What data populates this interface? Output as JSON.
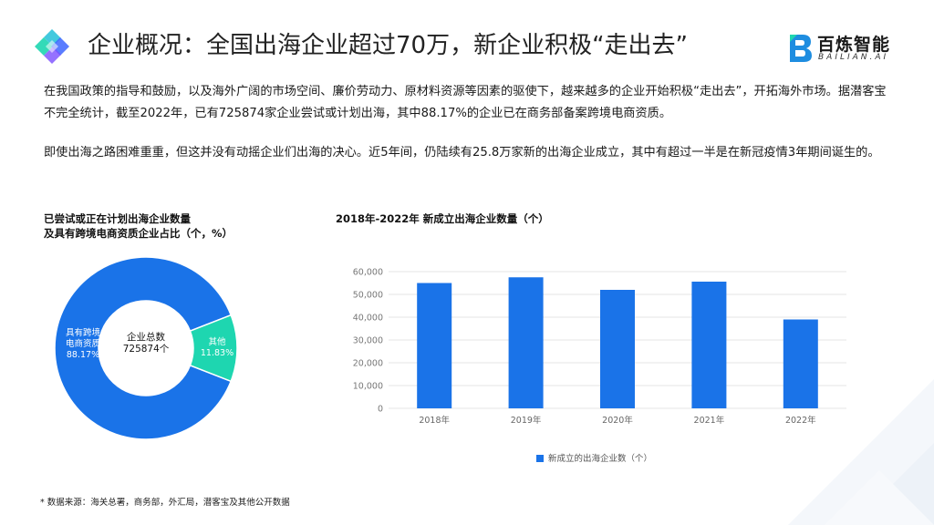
{
  "title": "企业概况：全国出海企业超过70万，新企业积极“走出去”",
  "brand": {
    "name": "百炼智能",
    "sub": "BAILIAN.AI"
  },
  "paragraphs": [
    "在我国政策的指导和鼓励，以及海外广阔的市场空间、廉价劳动力、原材料资源等因素的驱使下，越来越多的企业开始积极“走出去”，开拓海外市场。据潜客宝不完全统计，截至2022年，已有725874家企业尝试或计划出海，其中88.17%的企业已在商务部备案跨境电商资质。",
    "即使出海之路困难重重，但这并没有动摇企业们出海的决心。近5年间，仍陆续有25.8万家新的出海企业成立，其中有超过一半是在新冠疫情3年期间诞生的。"
  ],
  "pie_title_line1": "已尝试或正在计划出海企业数量",
  "pie_title_line2": "及具有跨境电商资质企业占比（个，%）",
  "bar_title": "2018年-2022年 新成立出海企业数量（个）",
  "colors": {
    "blue": "#1a73e8",
    "teal": "#1ed6b0"
  },
  "chart_data": [
    {
      "type": "pie",
      "title": "已尝试或正在计划出海企业数量及具有跨境电商资质企业占比（个，%）",
      "center_label": "企业总数",
      "center_value": "725874个",
      "slices": [
        {
          "label": "具有跨境电商资质",
          "label_line1": "具有跨境",
          "label_line2": "电商资质",
          "pct_text": "88.17%",
          "value": 88.17,
          "color": "#1a73e8"
        },
        {
          "label": "其他",
          "label_line1": "其他",
          "pct_text": "11.83%",
          "value": 11.83,
          "color": "#1ed6b0"
        }
      ]
    },
    {
      "type": "bar",
      "title": "2018年-2022年 新成立出海企业数量（个）",
      "categories": [
        "2018年",
        "2019年",
        "2020年",
        "2021年",
        "2022年"
      ],
      "series": [
        {
          "name": "新成立的出海企业数（个）",
          "values": [
            55000,
            57500,
            52000,
            55600,
            39000
          ],
          "color": "#1a73e8"
        }
      ],
      "ylim": [
        0,
        60000
      ],
      "yticks": [
        0,
        10000,
        20000,
        30000,
        40000,
        50000,
        60000
      ],
      "ytick_labels": [
        "0",
        "10,000",
        "20,000",
        "30,000",
        "40,000",
        "50,000",
        "60,000"
      ],
      "grid": true,
      "legend": "bottom"
    }
  ],
  "footnote": "* 数据来源：海关总署，商务部，外汇局，潜客宝及其他公开数据"
}
